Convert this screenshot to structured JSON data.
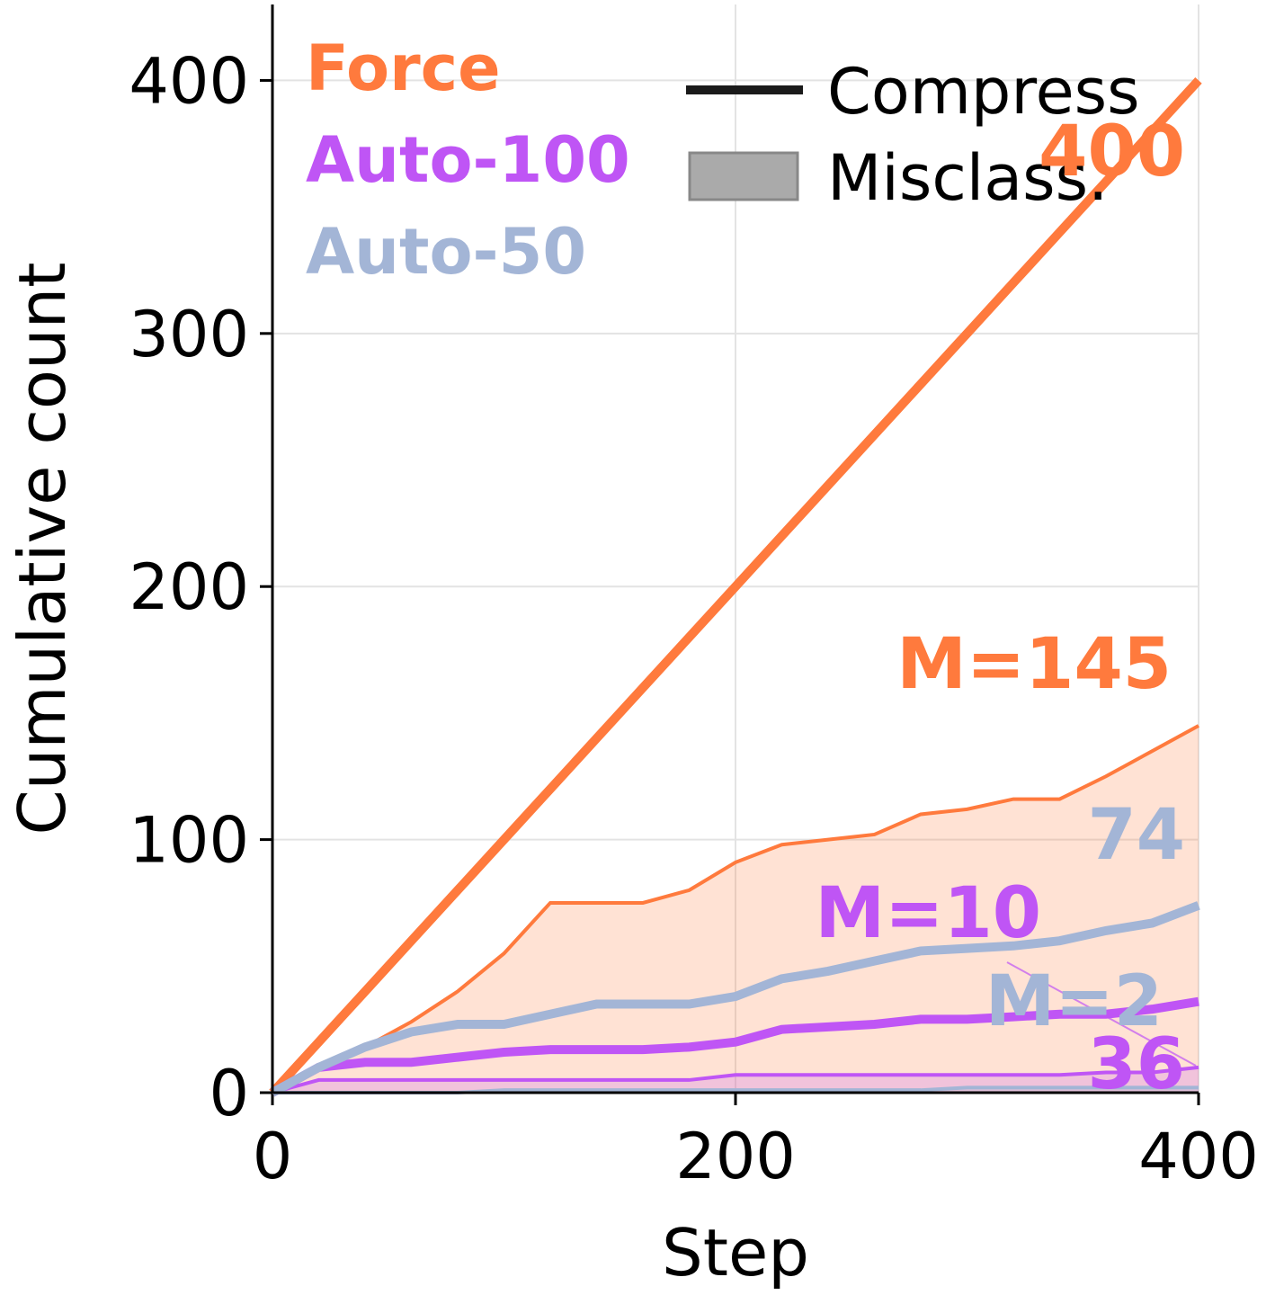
{
  "chart_data": {
    "type": "line",
    "xlabel": "Step",
    "ylabel": "Cumulative count",
    "x": [
      0,
      20,
      40,
      60,
      80,
      100,
      120,
      140,
      160,
      180,
      200,
      220,
      240,
      260,
      280,
      300,
      320,
      340,
      360,
      380,
      400
    ],
    "series": [
      {
        "name": "Force",
        "color": "#ff7a3d",
        "values": [
          0,
          20,
          40,
          60,
          80,
          100,
          120,
          140,
          160,
          180,
          200,
          220,
          240,
          260,
          280,
          300,
          320,
          340,
          360,
          380,
          400
        ],
        "misclass": [
          0,
          10,
          18,
          28,
          40,
          55,
          75,
          75,
          75,
          80,
          91,
          98,
          100,
          102,
          110,
          112,
          116,
          116,
          125,
          135,
          145
        ]
      },
      {
        "name": "Auto-100",
        "color": "#bf55f5",
        "values": [
          0,
          10,
          12,
          12,
          14,
          16,
          17,
          17,
          17,
          18,
          20,
          25,
          26,
          27,
          29,
          29,
          30,
          31,
          31,
          33,
          36
        ],
        "misclass": [
          0,
          5,
          5,
          5,
          5,
          5,
          5,
          5,
          5,
          5,
          7,
          7,
          7,
          7,
          7,
          7,
          7,
          7,
          8,
          8,
          10
        ]
      },
      {
        "name": "Auto-50",
        "color": "#a3b5d6",
        "values": [
          0,
          10,
          18,
          24,
          27,
          27,
          31,
          35,
          35,
          35,
          38,
          45,
          48,
          52,
          56,
          57,
          58,
          60,
          64,
          67,
          74
        ],
        "misclass": [
          0,
          0,
          0,
          0,
          0,
          1,
          1,
          1,
          1,
          1,
          1,
          1,
          1,
          1,
          1,
          2,
          2,
          2,
          2,
          2,
          2
        ]
      }
    ],
    "style_legend": [
      "Compress",
      "Misclass."
    ],
    "annotations": [
      {
        "text": "400",
        "color": "#ff7a3d"
      },
      {
        "text": "M=145",
        "color": "#ff7a3d"
      },
      {
        "text": "74",
        "color": "#a3b5d6"
      },
      {
        "text": "M=10",
        "color": "#bf55f5"
      },
      {
        "text": "M=2",
        "color": "#a3b5d6"
      },
      {
        "text": "36",
        "color": "#bf55f5"
      }
    ],
    "xlim": [
      0,
      400
    ],
    "ylim": [
      0,
      430
    ],
    "xticks": [
      0,
      200,
      400
    ],
    "yticks": [
      0,
      100,
      200,
      300,
      400
    ],
    "grid": true
  }
}
